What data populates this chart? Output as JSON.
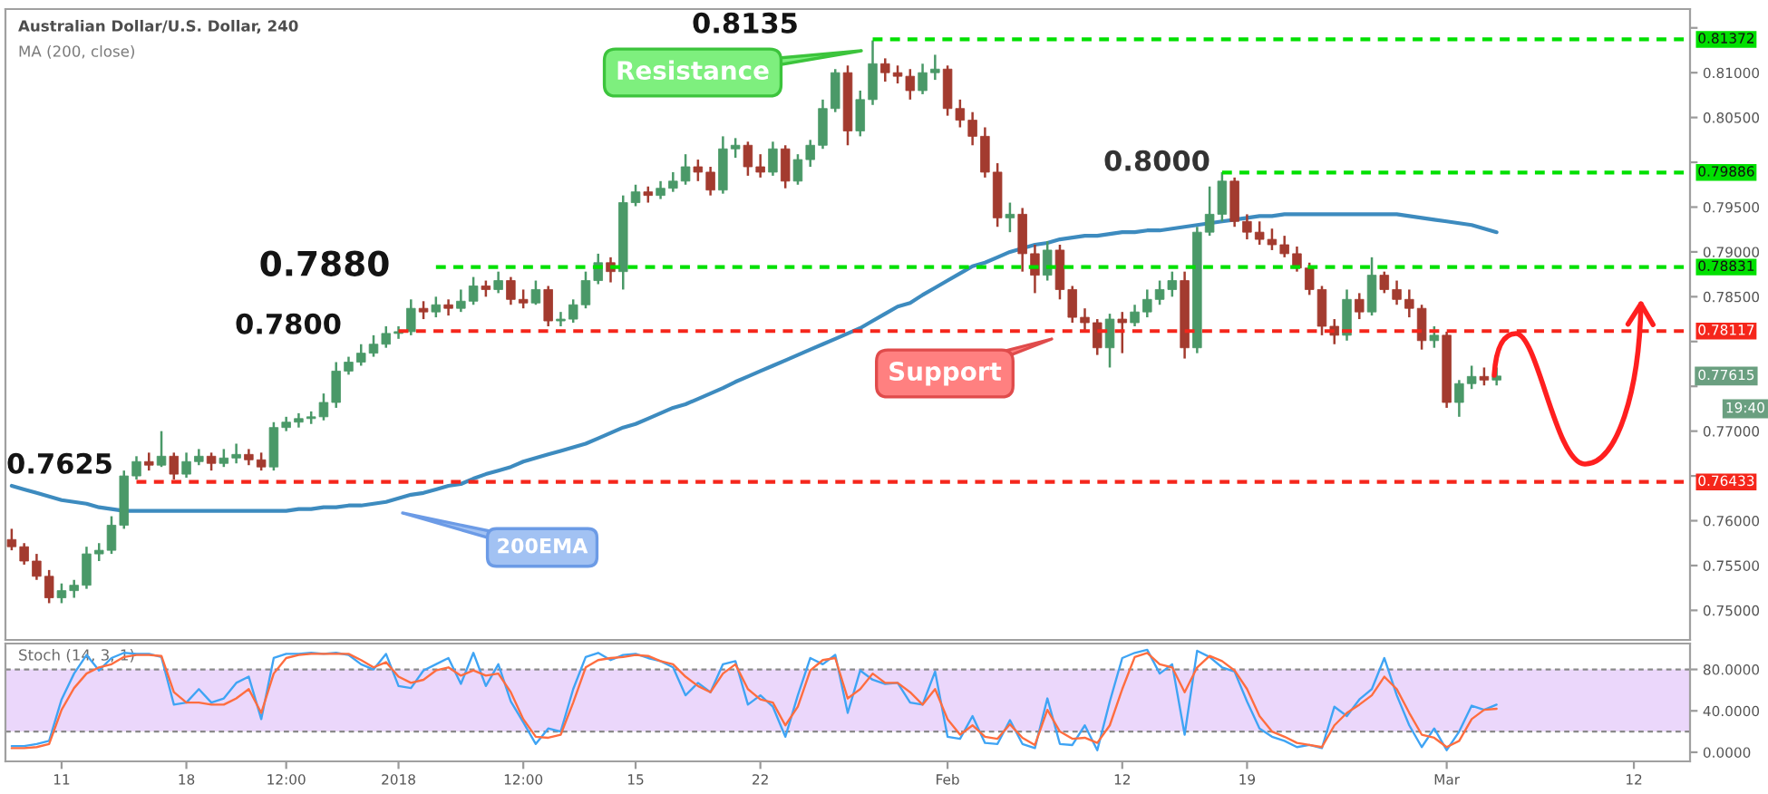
{
  "chart_data": [
    {
      "type": "candlestick",
      "title": "Australian Dollar/U.S. Dollar, 240",
      "subtitle": "MA (200, close)",
      "categories": [
        null,
        null,
        null,
        null,
        null,
        null,
        null,
        null,
        null,
        null,
        null,
        null,
        null,
        null,
        null,
        null,
        null,
        null,
        null,
        null,
        null,
        null,
        null,
        null,
        null,
        null,
        null,
        null,
        null,
        null,
        null,
        null,
        null,
        null,
        null,
        null,
        null,
        null,
        null,
        null,
        null,
        null,
        null,
        null,
        null,
        null,
        null,
        null,
        null,
        null,
        null,
        null,
        null,
        null,
        null,
        null,
        null,
        null,
        null,
        null,
        null,
        null,
        null,
        null,
        null,
        null,
        null,
        null,
        null,
        null,
        null,
        null,
        null,
        null,
        null,
        null,
        null,
        null,
        null,
        null,
        null,
        null,
        null,
        null,
        null,
        null,
        null,
        null,
        null,
        null,
        null,
        null,
        null,
        null,
        null,
        null,
        null,
        null,
        null,
        null,
        null,
        null,
        null,
        null,
        null,
        null,
        null,
        null,
        null,
        null,
        null,
        null,
        null,
        null,
        null,
        null,
        null,
        null,
        null,
        null,
        null,
        null,
        null,
        null,
        null,
        null,
        null,
        null,
        null,
        null,
        null,
        null,
        null,
        null,
        null
      ],
      "ohlc": [
        [
          0.7579,
          0.7591,
          0.7567,
          0.7571
        ],
        [
          0.7571,
          0.7575,
          0.7551,
          0.7555
        ],
        [
          0.7555,
          0.7563,
          0.7534,
          0.7538
        ],
        [
          0.7538,
          0.7545,
          0.7508,
          0.7514
        ],
        [
          0.7514,
          0.753,
          0.7508,
          0.7522
        ],
        [
          0.7522,
          0.7534,
          0.7514,
          0.7528
        ],
        [
          0.7528,
          0.7571,
          0.7524,
          0.7563
        ],
        [
          0.7563,
          0.7575,
          0.7555,
          0.7567
        ],
        [
          0.7567,
          0.7605,
          0.7563,
          0.7595
        ],
        [
          0.7595,
          0.7656,
          0.7591,
          0.765
        ],
        [
          0.765,
          0.7672,
          0.7646,
          0.7666
        ],
        [
          0.7666,
          0.7676,
          0.7656,
          0.7662
        ],
        [
          0.7662,
          0.77,
          0.766,
          0.7672
        ],
        [
          0.7672,
          0.7676,
          0.7646,
          0.7652
        ],
        [
          0.7652,
          0.7676,
          0.7648,
          0.7666
        ],
        [
          0.7666,
          0.768,
          0.7662,
          0.7672
        ],
        [
          0.7672,
          0.7676,
          0.7656,
          0.7664
        ],
        [
          0.7664,
          0.768,
          0.766,
          0.767
        ],
        [
          0.767,
          0.7686,
          0.7664,
          0.7674
        ],
        [
          0.7674,
          0.768,
          0.7662,
          0.7668
        ],
        [
          0.7668,
          0.7676,
          0.7656,
          0.766
        ],
        [
          0.766,
          0.771,
          0.7656,
          0.7704
        ],
        [
          0.7704,
          0.7716,
          0.77,
          0.771
        ],
        [
          0.771,
          0.772,
          0.7704,
          0.7714
        ],
        [
          0.7714,
          0.7722,
          0.7708,
          0.7716
        ],
        [
          0.7716,
          0.7742,
          0.7712,
          0.7732
        ],
        [
          0.7732,
          0.7777,
          0.7726,
          0.7767
        ],
        [
          0.7767,
          0.7783,
          0.7763,
          0.7777
        ],
        [
          0.7777,
          0.7797,
          0.7773,
          0.7787
        ],
        [
          0.7787,
          0.7807,
          0.7783,
          0.7797
        ],
        [
          0.7797,
          0.7817,
          0.7793,
          0.7809
        ],
        [
          0.7809,
          0.7817,
          0.7803,
          0.7811
        ],
        [
          0.7811,
          0.7847,
          0.7807,
          0.7837
        ],
        [
          0.7837,
          0.7845,
          0.7825,
          0.7833
        ],
        [
          0.7833,
          0.785,
          0.7827,
          0.7841
        ],
        [
          0.7841,
          0.7847,
          0.7829,
          0.7837
        ],
        [
          0.7837,
          0.7858,
          0.7833,
          0.7845
        ],
        [
          0.7845,
          0.7872,
          0.7841,
          0.7862
        ],
        [
          0.7862,
          0.7868,
          0.785,
          0.7858
        ],
        [
          0.7858,
          0.7878,
          0.7854,
          0.7868
        ],
        [
          0.7868,
          0.7872,
          0.7841,
          0.7847
        ],
        [
          0.7847,
          0.7858,
          0.7837,
          0.7843
        ],
        [
          0.7843,
          0.7868,
          0.7841,
          0.7858
        ],
        [
          0.7858,
          0.7862,
          0.7817,
          0.7823
        ],
        [
          0.7823,
          0.7833,
          0.7817,
          0.7825
        ],
        [
          0.7825,
          0.7847,
          0.7821,
          0.7841
        ],
        [
          0.7841,
          0.7878,
          0.7837,
          0.7868
        ],
        [
          0.7868,
          0.7898,
          0.7864,
          0.7888
        ],
        [
          0.7888,
          0.7894,
          0.7866,
          0.7878
        ],
        [
          0.7878,
          0.7963,
          0.7858,
          0.7955
        ],
        [
          0.7955,
          0.7975,
          0.7951,
          0.7967
        ],
        [
          0.7967,
          0.7973,
          0.7955,
          0.7963
        ],
        [
          0.7963,
          0.7979,
          0.7959,
          0.7971
        ],
        [
          0.7971,
          0.7989,
          0.7967,
          0.7979
        ],
        [
          0.7979,
          0.8009,
          0.7975,
          0.7995
        ],
        [
          0.7995,
          0.8003,
          0.7979,
          0.7989
        ],
        [
          0.7989,
          0.7995,
          0.7963,
          0.7969
        ],
        [
          0.7969,
          0.8029,
          0.7965,
          0.8015
        ],
        [
          0.8015,
          0.8027,
          0.8005,
          0.8019
        ],
        [
          0.8019,
          0.8023,
          0.7985,
          0.7995
        ],
        [
          0.7995,
          0.8009,
          0.7983,
          0.7989
        ],
        [
          0.7989,
          0.8023,
          0.7985,
          0.8015
        ],
        [
          0.8015,
          0.8019,
          0.7971,
          0.7979
        ],
        [
          0.7979,
          0.8009,
          0.7975,
          0.8003
        ],
        [
          0.8003,
          0.8025,
          0.7995,
          0.8019
        ],
        [
          0.8019,
          0.807,
          0.8015,
          0.806
        ],
        [
          0.806,
          0.8104,
          0.8056,
          0.81
        ],
        [
          0.81,
          0.8108,
          0.8019,
          0.8035
        ],
        [
          0.8035,
          0.808,
          0.8029,
          0.807
        ],
        [
          0.807,
          0.8136,
          0.8064,
          0.811
        ],
        [
          0.811,
          0.8116,
          0.809,
          0.81
        ],
        [
          0.81,
          0.8108,
          0.8088,
          0.8096
        ],
        [
          0.8096,
          0.8104,
          0.807,
          0.808
        ],
        [
          0.808,
          0.811,
          0.8076,
          0.81
        ],
        [
          0.81,
          0.812,
          0.8092,
          0.8104
        ],
        [
          0.8104,
          0.8108,
          0.8052,
          0.806
        ],
        [
          0.806,
          0.807,
          0.8039,
          0.8047
        ],
        [
          0.8047,
          0.8056,
          0.8019,
          0.8029
        ],
        [
          0.8029,
          0.8039,
          0.7983,
          0.7989
        ],
        [
          0.7989,
          0.7999,
          0.7928,
          0.7938
        ],
        [
          0.7938,
          0.7955,
          0.7922,
          0.7942
        ],
        [
          0.7942,
          0.7949,
          0.7878,
          0.7898
        ],
        [
          0.7898,
          0.7908,
          0.7854,
          0.7874
        ],
        [
          0.7874,
          0.7912,
          0.7868,
          0.7902
        ],
        [
          0.7902,
          0.7908,
          0.7847,
          0.7858
        ],
        [
          0.7858,
          0.7862,
          0.7821,
          0.7827
        ],
        [
          0.7827,
          0.7837,
          0.7813,
          0.7821
        ],
        [
          0.7821,
          0.7825,
          0.7785,
          0.7793
        ],
        [
          0.7793,
          0.7831,
          0.7771,
          0.7825
        ],
        [
          0.7825,
          0.7833,
          0.7787,
          0.7821
        ],
        [
          0.7821,
          0.7841,
          0.7817,
          0.7833
        ],
        [
          0.7833,
          0.7858,
          0.7827,
          0.7847
        ],
        [
          0.7847,
          0.7868,
          0.7841,
          0.7858
        ],
        [
          0.7858,
          0.7878,
          0.785,
          0.7868
        ],
        [
          0.7868,
          0.7878,
          0.7781,
          0.7793
        ],
        [
          0.7793,
          0.7928,
          0.7787,
          0.7922
        ],
        [
          0.7922,
          0.7973,
          0.7918,
          0.7942
        ],
        [
          0.7942,
          0.7989,
          0.7934,
          0.7979
        ],
        [
          0.7979,
          0.7983,
          0.7928,
          0.7934
        ],
        [
          0.7934,
          0.7942,
          0.7914,
          0.7922
        ],
        [
          0.7922,
          0.7934,
          0.7908,
          0.7914
        ],
        [
          0.7914,
          0.7926,
          0.7902,
          0.7908
        ],
        [
          0.7908,
          0.7918,
          0.7894,
          0.7898
        ],
        [
          0.7898,
          0.7906,
          0.7878,
          0.7882
        ],
        [
          0.7882,
          0.7888,
          0.7852,
          0.7858
        ],
        [
          0.7858,
          0.7862,
          0.7807,
          0.7817
        ],
        [
          0.7817,
          0.7825,
          0.7797,
          0.7807
        ],
        [
          0.7807,
          0.7858,
          0.7801,
          0.7847
        ],
        [
          0.7847,
          0.7854,
          0.7825,
          0.7833
        ],
        [
          0.7833,
          0.7894,
          0.7829,
          0.7874
        ],
        [
          0.7874,
          0.7878,
          0.7854,
          0.7858
        ],
        [
          0.7858,
          0.7868,
          0.7841,
          0.7847
        ],
        [
          0.7847,
          0.7858,
          0.7827,
          0.7837
        ],
        [
          0.7837,
          0.7841,
          0.7791,
          0.7801
        ],
        [
          0.7801,
          0.7817,
          0.7793,
          0.7807
        ],
        [
          0.7807,
          0.7811,
          0.7726,
          0.7732
        ],
        [
          0.7732,
          0.7757,
          0.7716,
          0.7753
        ],
        [
          0.7753,
          0.7773,
          0.7747,
          0.7761
        ],
        [
          0.7761,
          0.7771,
          0.7751,
          0.7757
        ],
        [
          0.7757,
          0.7771,
          0.7751,
          0.77615
        ],
        null,
        null,
        null,
        null,
        null,
        null,
        null,
        null,
        null,
        null,
        null,
        null,
        null,
        null,
        null
      ],
      "series": [
        {
          "type": "line",
          "color": "#3d8bbf",
          "values": [
            0.7639,
            0.7635,
            0.7631,
            0.7627,
            0.7623,
            0.7621,
            0.7619,
            0.7615,
            0.7613,
            0.7611,
            0.7611,
            0.7611,
            0.7611,
            0.7611,
            0.7611,
            0.7611,
            0.7611,
            0.7611,
            0.7611,
            0.7611,
            0.7611,
            0.7611,
            0.7611,
            0.7613,
            0.7613,
            0.7615,
            0.7615,
            0.7617,
            0.7617,
            0.7619,
            0.7621,
            0.7625,
            0.7629,
            0.7631,
            0.7635,
            0.7639,
            0.7641,
            0.7647,
            0.7652,
            0.7656,
            0.766,
            0.7666,
            0.767,
            0.7674,
            0.7678,
            0.7682,
            0.7686,
            0.7692,
            0.7698,
            0.7704,
            0.7708,
            0.7714,
            0.772,
            0.7726,
            0.773,
            0.7736,
            0.7742,
            0.7748,
            0.7755,
            0.7761,
            0.7767,
            0.7773,
            0.7779,
            0.7785,
            0.7791,
            0.7797,
            0.7803,
            0.7809,
            0.7815,
            0.7823,
            0.7831,
            0.7839,
            0.7843,
            0.7852,
            0.786,
            0.7868,
            0.7876,
            0.7884,
            0.7888,
            0.7894,
            0.79,
            0.7904,
            0.7908,
            0.791,
            0.7914,
            0.7916,
            0.7918,
            0.7918,
            0.792,
            0.7922,
            0.7922,
            0.7924,
            0.7924,
            0.7926,
            0.7928,
            0.793,
            0.7932,
            0.7934,
            0.7936,
            0.7938,
            0.794,
            0.794,
            0.7942,
            0.7942,
            0.7942,
            0.7942,
            0.7942,
            0.7942,
            0.7942,
            0.7942,
            0.7942,
            0.7942,
            0.794,
            0.7938,
            0.7936,
            0.7934,
            0.7932,
            0.793,
            0.7926,
            0.7922,
            null,
            null,
            null,
            null,
            null,
            null,
            null,
            null,
            null,
            null,
            null,
            null,
            null,
            null,
            null
          ]
        },
        {
          "type": "line",
          "name": "0.81372",
          "color": "#00e000",
          "line_style": "dashed",
          "values": [
            null,
            null,
            null,
            null,
            null,
            null,
            null,
            null,
            null,
            null,
            null,
            null,
            null,
            null,
            null,
            null,
            null,
            null,
            null,
            null,
            null,
            null,
            null,
            null,
            null,
            null,
            null,
            null,
            null,
            null,
            null,
            null,
            null,
            null,
            null,
            null,
            null,
            null,
            null,
            null,
            null,
            null,
            null,
            null,
            null,
            null,
            null,
            null,
            null,
            null,
            null,
            null,
            null,
            null,
            null,
            null,
            null,
            null,
            null,
            null,
            null,
            null,
            null,
            null,
            null,
            null,
            null,
            null,
            null,
            0.81372,
            0.81372,
            0.81372,
            0.81372,
            0.81372,
            0.81372,
            0.81372,
            0.81372,
            0.81372,
            0.81372,
            0.81372,
            0.81372,
            0.81372,
            0.81372,
            0.81372,
            0.81372,
            0.81372,
            0.81372,
            0.81372,
            0.81372,
            0.81372,
            0.81372,
            0.81372,
            0.81372,
            0.81372,
            0.81372,
            0.81372,
            0.81372,
            0.81372,
            0.81372,
            0.81372,
            0.81372,
            0.81372,
            0.81372,
            0.81372,
            0.81372,
            0.81372,
            0.81372,
            0.81372,
            0.81372,
            0.81372,
            0.81372,
            0.81372,
            0.81372,
            0.81372,
            0.81372,
            0.81372,
            0.81372,
            0.81372,
            0.81372,
            0.81372,
            0.81372,
            0.81372,
            0.81372,
            0.81372,
            0.81372,
            0.81372,
            0.81372,
            0.81372,
            0.81372,
            0.81372,
            0.81372,
            0.81372,
            0.81372,
            0.81372,
            0.81372
          ]
        },
        {
          "type": "line",
          "name": "0.79886",
          "color": "#00e000",
          "line_style": "dashed",
          "values": [
            null,
            null,
            null,
            null,
            null,
            null,
            null,
            null,
            null,
            null,
            null,
            null,
            null,
            null,
            null,
            null,
            null,
            null,
            null,
            null,
            null,
            null,
            null,
            null,
            null,
            null,
            null,
            null,
            null,
            null,
            null,
            null,
            null,
            null,
            null,
            null,
            null,
            null,
            null,
            null,
            null,
            null,
            null,
            null,
            null,
            null,
            null,
            null,
            null,
            null,
            null,
            null,
            null,
            null,
            null,
            null,
            null,
            null,
            null,
            null,
            null,
            null,
            null,
            null,
            null,
            null,
            null,
            null,
            null,
            null,
            null,
            null,
            null,
            null,
            null,
            null,
            null,
            null,
            null,
            null,
            null,
            null,
            null,
            null,
            null,
            null,
            null,
            null,
            null,
            null,
            null,
            null,
            null,
            null,
            null,
            null,
            null,
            0.79886,
            0.79886,
            0.79886,
            0.79886,
            0.79886,
            0.79886,
            0.79886,
            0.79886,
            0.79886,
            0.79886,
            0.79886,
            0.79886,
            0.79886,
            0.79886,
            0.79886,
            0.79886,
            0.79886,
            0.79886,
            0.79886,
            0.79886,
            0.79886,
            0.79886,
            0.79886,
            0.79886,
            0.79886,
            0.79886,
            0.79886,
            0.79886,
            0.79886,
            0.79886,
            0.79886,
            0.79886,
            0.79886,
            0.79886,
            0.79886,
            0.79886,
            0.79886,
            0.79886
          ]
        },
        {
          "type": "line",
          "name": "0.78831",
          "color": "#00e000",
          "line_style": "dashed",
          "values": [
            null,
            null,
            null,
            null,
            null,
            null,
            null,
            null,
            null,
            null,
            null,
            null,
            null,
            null,
            null,
            null,
            null,
            null,
            null,
            null,
            null,
            null,
            null,
            null,
            null,
            null,
            null,
            null,
            null,
            null,
            null,
            null,
            null,
            null,
            0.78831,
            0.78831,
            0.78831,
            0.78831,
            0.78831,
            0.78831,
            0.78831,
            0.78831,
            0.78831,
            0.78831,
            0.78831,
            0.78831,
            0.78831,
            0.78831,
            0.78831,
            0.78831,
            0.78831,
            0.78831,
            0.78831,
            0.78831,
            0.78831,
            0.78831,
            0.78831,
            0.78831,
            0.78831,
            0.78831,
            0.78831,
            0.78831,
            0.78831,
            0.78831,
            0.78831,
            0.78831,
            0.78831,
            0.78831,
            0.78831,
            0.78831,
            0.78831,
            0.78831,
            0.78831,
            0.78831,
            0.78831,
            0.78831,
            0.78831,
            0.78831,
            0.78831,
            0.78831,
            0.78831,
            0.78831,
            0.78831,
            0.78831,
            0.78831,
            0.78831,
            0.78831,
            0.78831,
            0.78831,
            0.78831,
            0.78831,
            0.78831,
            0.78831,
            0.78831,
            0.78831,
            0.78831,
            0.78831,
            0.78831,
            0.78831,
            0.78831,
            0.78831,
            0.78831,
            0.78831,
            0.78831,
            0.78831,
            0.78831,
            0.78831,
            0.78831,
            0.78831,
            0.78831,
            0.78831,
            0.78831,
            0.78831,
            0.78831,
            0.78831,
            0.78831,
            0.78831,
            0.78831,
            0.78831,
            0.78831,
            0.78831,
            0.78831,
            0.78831,
            0.78831,
            0.78831,
            0.78831,
            0.78831,
            0.78831,
            0.78831,
            0.78831,
            0.78831,
            0.78831,
            0.78831,
            0.78831,
            0.78831
          ]
        },
        {
          "type": "line",
          "name": "0.78117",
          "color": "#f5261b",
          "line_style": "dashed",
          "values": [
            null,
            null,
            null,
            null,
            null,
            null,
            null,
            null,
            null,
            null,
            null,
            null,
            null,
            null,
            null,
            null,
            null,
            null,
            null,
            null,
            null,
            null,
            null,
            null,
            null,
            null,
            null,
            null,
            null,
            null,
            null,
            0.78117,
            0.78117,
            0.78117,
            0.78117,
            0.78117,
            0.78117,
            0.78117,
            0.78117,
            0.78117,
            0.78117,
            0.78117,
            0.78117,
            0.78117,
            0.78117,
            0.78117,
            0.78117,
            0.78117,
            0.78117,
            0.78117,
            0.78117,
            0.78117,
            0.78117,
            0.78117,
            0.78117,
            0.78117,
            0.78117,
            0.78117,
            0.78117,
            0.78117,
            0.78117,
            0.78117,
            0.78117,
            0.78117,
            0.78117,
            0.78117,
            0.78117,
            0.78117,
            0.78117,
            0.78117,
            0.78117,
            0.78117,
            0.78117,
            0.78117,
            0.78117,
            0.78117,
            0.78117,
            0.78117,
            0.78117,
            0.78117,
            0.78117,
            0.78117,
            0.78117,
            0.78117,
            0.78117,
            0.78117,
            0.78117,
            0.78117,
            0.78117,
            0.78117,
            0.78117,
            0.78117,
            0.78117,
            0.78117,
            0.78117,
            0.78117,
            0.78117,
            0.78117,
            0.78117,
            0.78117,
            0.78117,
            0.78117,
            0.78117,
            0.78117,
            0.78117,
            0.78117,
            0.78117,
            0.78117,
            0.78117,
            0.78117,
            0.78117,
            0.78117,
            0.78117,
            0.78117,
            0.78117,
            0.78117,
            0.78117,
            0.78117,
            0.78117,
            0.78117,
            0.78117,
            0.78117,
            0.78117,
            0.78117,
            0.78117,
            0.78117,
            0.78117,
            0.78117,
            0.78117,
            0.78117,
            0.78117,
            0.78117,
            0.78117,
            0.78117,
            0.78117
          ]
        },
        {
          "type": "line",
          "name": "0.76433",
          "color": "#f5261b",
          "line_style": "dashed",
          "values": [
            null,
            null,
            null,
            null,
            null,
            null,
            null,
            null,
            null,
            null,
            0.76433,
            0.76433,
            0.76433,
            0.76433,
            0.76433,
            0.76433,
            0.76433,
            0.76433,
            0.76433,
            0.76433,
            0.76433,
            0.76433,
            0.76433,
            0.76433,
            0.76433,
            0.76433,
            0.76433,
            0.76433,
            0.76433,
            0.76433,
            0.76433,
            0.76433,
            0.76433,
            0.76433,
            0.76433,
            0.76433,
            0.76433,
            0.76433,
            0.76433,
            0.76433,
            0.76433,
            0.76433,
            0.76433,
            0.76433,
            0.76433,
            0.76433,
            0.76433,
            0.76433,
            0.76433,
            0.76433,
            0.76433,
            0.76433,
            0.76433,
            0.76433,
            0.76433,
            0.76433,
            0.76433,
            0.76433,
            0.76433,
            0.76433,
            0.76433,
            0.76433,
            0.76433,
            0.76433,
            0.76433,
            0.76433,
            0.76433,
            0.76433,
            0.76433,
            0.76433,
            0.76433,
            0.76433,
            0.76433,
            0.76433,
            0.76433,
            0.76433,
            0.76433,
            0.76433,
            0.76433,
            0.76433,
            0.76433,
            0.76433,
            0.76433,
            0.76433,
            0.76433,
            0.76433,
            0.76433,
            0.76433,
            0.76433,
            0.76433,
            0.76433,
            0.76433,
            0.76433,
            0.76433,
            0.76433,
            0.76433,
            0.76433,
            0.76433,
            0.76433,
            0.76433,
            0.76433,
            0.76433,
            0.76433,
            0.76433,
            0.76433,
            0.76433,
            0.76433,
            0.76433,
            0.76433,
            0.76433,
            0.76433,
            0.76433,
            0.76433,
            0.76433,
            0.76433,
            0.76433,
            0.76433,
            0.76433,
            0.76433,
            0.76433,
            0.76433,
            0.76433,
            0.76433,
            0.76433,
            0.76433,
            0.76433,
            0.76433,
            0.76433,
            0.76433,
            0.76433,
            0.76433,
            0.76433,
            0.76433,
            0.76433,
            0.76433
          ]
        }
      ],
      "ylim": [
        0.7467,
        0.8171
      ],
      "yticks": [
        {
          "value": 0.75,
          "label": "0.75000"
        },
        {
          "value": 0.755,
          "label": "0.75500"
        },
        {
          "value": 0.76,
          "label": "0.76000"
        },
        {
          "value": 0.765,
          "label": null
        },
        {
          "value": 0.77,
          "label": "0.77000"
        },
        {
          "value": 0.775,
          "label": null
        },
        {
          "value": 0.78,
          "label": null
        },
        {
          "value": 0.785,
          "label": "0.78500"
        },
        {
          "value": 0.79,
          "label": "0.79000"
        },
        {
          "value": 0.795,
          "label": "0.79500"
        },
        {
          "value": 0.8,
          "label": null
        },
        {
          "value": 0.805,
          "label": "0.80500"
        },
        {
          "value": 0.81,
          "label": "0.81000"
        },
        {
          "value": 0.815,
          "label": null
        }
      ],
      "annotations": [
        "0.8135",
        "0.8000",
        "0.7880",
        "0.7800",
        "0.7625",
        "Resistance",
        "Support",
        "200EMA",
        {
          "text": "0.77615",
          "y": 0.77615
        },
        "19:40"
      ]
    },
    {
      "type": "line",
      "title": "Stoch (14, 3, 1)",
      "categories": [
        null,
        null,
        null,
        null,
        "11",
        null,
        null,
        null,
        null,
        null,
        null,
        null,
        null,
        null,
        "18",
        null,
        null,
        null,
        null,
        null,
        null,
        null,
        "12:00",
        null,
        null,
        null,
        null,
        null,
        null,
        null,
        null,
        "2018",
        null,
        null,
        null,
        null,
        null,
        null,
        null,
        null,
        null,
        "12:00",
        null,
        null,
        null,
        null,
        null,
        null,
        null,
        null,
        "15",
        null,
        null,
        null,
        null,
        null,
        null,
        null,
        null,
        null,
        "22",
        null,
        null,
        null,
        null,
        null,
        null,
        null,
        null,
        null,
        null,
        null,
        null,
        null,
        null,
        "Feb",
        null,
        null,
        null,
        null,
        null,
        null,
        null,
        null,
        null,
        null,
        null,
        null,
        null,
        "12",
        null,
        null,
        null,
        null,
        null,
        null,
        null,
        null,
        null,
        "19",
        null,
        null,
        null,
        null,
        null,
        null,
        null,
        null,
        null,
        null,
        null,
        null,
        null,
        null,
        null,
        "Mar",
        null,
        null,
        null,
        null,
        null,
        null,
        null,
        null,
        null,
        null,
        null,
        null,
        null,
        null,
        "12",
        null,
        null,
        null,
        null
      ],
      "series": [
        {
          "color": "#3fa4f4",
          "values": [
            6,
            6,
            8,
            11,
            51,
            76,
            94,
            79,
            91,
            96,
            95,
            95,
            92,
            46,
            48,
            61,
            48,
            52,
            67,
            73,
            32,
            91,
            95,
            95,
            96,
            95,
            96,
            94,
            85,
            80,
            95,
            64,
            62,
            79,
            85,
            91,
            66,
            96,
            64,
            85,
            49,
            29,
            8,
            23,
            20,
            61,
            92,
            96,
            89,
            94,
            95,
            91,
            88,
            82,
            55,
            67,
            58,
            85,
            88,
            46,
            55,
            44,
            15,
            55,
            91,
            85,
            94,
            38,
            79,
            70,
            66,
            67,
            48,
            46,
            78,
            15,
            13,
            35,
            9,
            8,
            31,
            8,
            4,
            52,
            8,
            7,
            26,
            2,
            49,
            91,
            96,
            99,
            76,
            85,
            17,
            98,
            92,
            82,
            78,
            49,
            23,
            15,
            11,
            5,
            7,
            4,
            44,
            35,
            51,
            61,
            91,
            55,
            26,
            5,
            23,
            2,
            20,
            45,
            41,
            46,
            null,
            null,
            null,
            null,
            null,
            null,
            null,
            null,
            null,
            null,
            null,
            null,
            null,
            null,
            null
          ]
        },
        {
          "color": "#ff6d3f",
          "values": [
            4,
            4,
            5,
            8,
            41,
            62,
            76,
            82,
            85,
            92,
            94,
            94,
            93,
            58,
            48,
            48,
            46,
            46,
            52,
            61,
            38,
            76,
            91,
            94,
            95,
            95,
            95,
            95,
            89,
            82,
            87,
            73,
            67,
            70,
            79,
            82,
            74,
            79,
            74,
            76,
            58,
            32,
            15,
            14,
            17,
            48,
            82,
            89,
            91,
            92,
            94,
            93,
            88,
            85,
            73,
            64,
            58,
            76,
            85,
            61,
            51,
            48,
            26,
            44,
            79,
            89,
            91,
            52,
            61,
            76,
            67,
            67,
            58,
            46,
            61,
            32,
            17,
            26,
            15,
            13,
            27,
            14,
            7,
            41,
            20,
            13,
            14,
            9,
            26,
            61,
            92,
            96,
            85,
            82,
            58,
            82,
            93,
            88,
            79,
            61,
            35,
            20,
            15,
            9,
            7,
            5,
            26,
            38,
            46,
            55,
            73,
            61,
            38,
            17,
            14,
            5,
            11,
            32,
            41,
            42,
            null,
            null,
            null,
            null,
            null,
            null,
            null,
            null,
            null,
            null,
            null,
            null,
            null,
            null,
            null
          ]
        }
      ],
      "bands": [
        {
          "axis": "y",
          "from": 20,
          "to": 80,
          "color": "#ebd7fb"
        }
      ],
      "ref_lines": [
        {
          "axis": "y",
          "value": 80,
          "color": "#8a8a8a",
          "line_style": "dashed"
        },
        {
          "axis": "y",
          "value": 20,
          "color": "#8a8a8a",
          "line_style": "dashed"
        }
      ],
      "ylim": [
        -8.8,
        105
      ],
      "yticks": [
        {
          "value": 0,
          "label": "0.0000"
        },
        {
          "value": 40,
          "label": "40.0000"
        },
        {
          "value": 80,
          "label": "80.0000"
        }
      ]
    }
  ]
}
